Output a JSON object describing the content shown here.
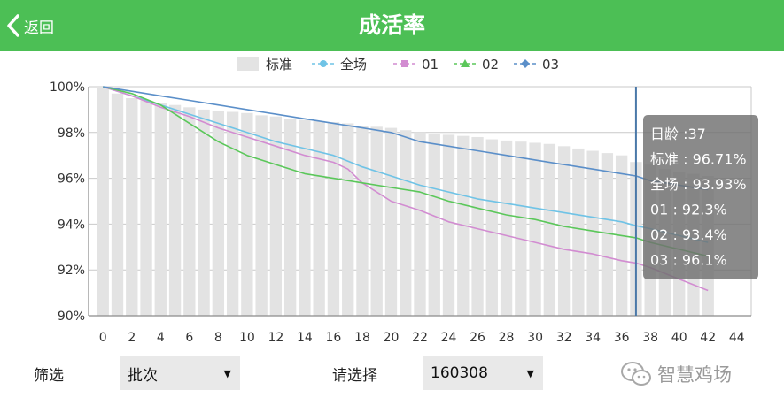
{
  "header": {
    "back_label": "返回",
    "title": "成活率",
    "accent_color": "#4cbf55"
  },
  "chart_data": {
    "type": "bar+line",
    "title": "",
    "xlabel": "",
    "ylabel": "",
    "xlim": [
      -1,
      45
    ],
    "ylim": [
      90,
      100
    ],
    "x_ticks": [
      0,
      2,
      4,
      6,
      8,
      10,
      12,
      14,
      16,
      18,
      20,
      22,
      24,
      26,
      28,
      30,
      32,
      34,
      36,
      38,
      40,
      42,
      44
    ],
    "y_ticks": [
      90,
      92,
      94,
      96,
      98,
      100
    ],
    "y_tick_labels": [
      "90%",
      "92%",
      "94%",
      "96%",
      "98%",
      "100%"
    ],
    "grid": true,
    "legend_position": "top-center",
    "legend_entries": [
      "标准",
      "全场",
      "01",
      "02",
      "03"
    ],
    "bars": {
      "name": "标准",
      "color": "#e3e3e3",
      "x": [
        0,
        1,
        2,
        3,
        4,
        5,
        6,
        7,
        8,
        9,
        10,
        11,
        12,
        13,
        14,
        15,
        16,
        17,
        18,
        19,
        20,
        21,
        22,
        23,
        24,
        25,
        26,
        27,
        28,
        29,
        30,
        31,
        32,
        33,
        34,
        35,
        36,
        37,
        38,
        39,
        40,
        41,
        42
      ],
      "values": [
        99.95,
        99.7,
        99.5,
        99.4,
        99.3,
        99.2,
        99.1,
        99.0,
        98.95,
        98.9,
        98.85,
        98.75,
        98.7,
        98.6,
        98.55,
        98.5,
        98.45,
        98.4,
        98.3,
        98.25,
        98.2,
        98.1,
        98.0,
        97.95,
        97.9,
        97.85,
        97.8,
        97.7,
        97.65,
        97.6,
        97.55,
        97.5,
        97.4,
        97.3,
        97.2,
        97.1,
        97.0,
        96.71,
        96.6,
        96.4,
        96.3,
        96.2,
        96.1
      ]
    },
    "series": [
      {
        "name": "全场",
        "color": "#6fc3e6",
        "x": [
          0,
          2,
          4,
          6,
          8,
          10,
          12,
          14,
          16,
          18,
          20,
          22,
          24,
          26,
          28,
          30,
          32,
          34,
          36,
          37,
          38,
          40,
          42
        ],
        "values": [
          100,
          99.6,
          99.2,
          98.8,
          98.4,
          98.0,
          97.6,
          97.3,
          97.0,
          96.5,
          96.1,
          95.7,
          95.4,
          95.1,
          94.9,
          94.7,
          94.5,
          94.3,
          94.1,
          93.93,
          93.8,
          93.5,
          93.2
        ]
      },
      {
        "name": "01",
        "color": "#d28cd1",
        "x": [
          0,
          2,
          4,
          6,
          8,
          10,
          12,
          14,
          16,
          17,
          18,
          20,
          22,
          24,
          26,
          28,
          30,
          32,
          34,
          36,
          37,
          38,
          40,
          42
        ],
        "values": [
          100,
          99.6,
          99.1,
          98.7,
          98.2,
          97.8,
          97.4,
          97.0,
          96.7,
          96.4,
          95.8,
          95.0,
          94.6,
          94.1,
          93.8,
          93.5,
          93.2,
          92.9,
          92.7,
          92.4,
          92.3,
          92.1,
          91.6,
          91.1
        ]
      },
      {
        "name": "02",
        "color": "#5bc75a",
        "x": [
          0,
          2,
          4,
          5,
          6,
          8,
          10,
          12,
          14,
          16,
          18,
          20,
          22,
          24,
          26,
          28,
          30,
          32,
          34,
          36,
          37,
          38,
          40,
          42
        ],
        "values": [
          100,
          99.7,
          99.2,
          98.8,
          98.4,
          97.6,
          97.0,
          96.6,
          96.2,
          96.0,
          95.8,
          95.6,
          95.4,
          95.0,
          94.7,
          94.4,
          94.2,
          93.9,
          93.7,
          93.5,
          93.4,
          93.2,
          92.9,
          92.6
        ]
      },
      {
        "name": "03",
        "color": "#5b8fc9",
        "x": [
          0,
          2,
          4,
          6,
          8,
          10,
          12,
          14,
          16,
          18,
          20,
          22,
          24,
          26,
          28,
          30,
          32,
          34,
          36,
          37,
          38,
          40,
          42
        ],
        "values": [
          100,
          99.8,
          99.6,
          99.4,
          99.2,
          99.0,
          98.8,
          98.6,
          98.4,
          98.2,
          98.0,
          97.6,
          97.4,
          97.2,
          97.0,
          96.8,
          96.6,
          96.4,
          96.2,
          96.1,
          95.9,
          95.7,
          95.5
        ]
      }
    ],
    "cursor_x": 37,
    "cursor_color": "#4a78a8",
    "tooltip": {
      "lines": [
        "日龄 :37",
        "标准 : 96.71%",
        "全场 : 93.93%",
        "01 : 92.3%",
        "02 : 93.4%",
        "03 : 96.1%"
      ]
    }
  },
  "filters": {
    "batch_label": "筛选",
    "batch_value": "批次",
    "choose_label": "请选择",
    "choose_value": "160308"
  },
  "watermark": {
    "text": "智慧鸡场"
  }
}
